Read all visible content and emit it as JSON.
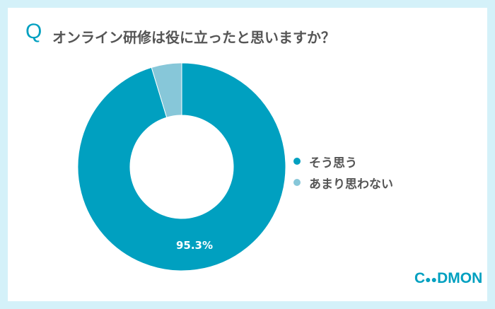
{
  "header": {
    "q_mark": "Q",
    "title": "オンライン研修は役に立ったと思いますか？"
  },
  "chart_data": {
    "type": "pie",
    "donut": true,
    "categories": [
      "そう思う",
      "あまり思わない"
    ],
    "values": [
      95.3,
      4.7
    ],
    "colors": [
      "#00a0c0",
      "#87c7d9"
    ],
    "data_labels": [
      "95.3%",
      ""
    ],
    "legend_position": "right"
  },
  "logo": {
    "text": "CoDMON"
  }
}
